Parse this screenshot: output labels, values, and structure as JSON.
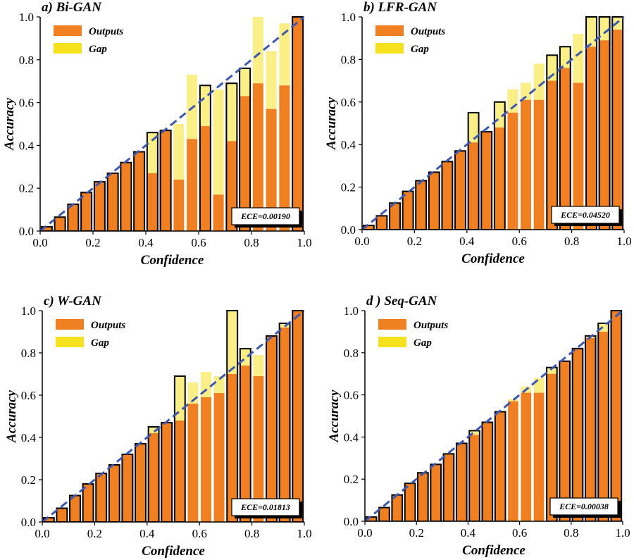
{
  "colors": {
    "outputs": "#f07f22",
    "gap_fill": "#faee86",
    "gap_legend": "#f5e21c",
    "diagonal": "#3e58b0",
    "bar_edge": "#000000"
  },
  "chart_data": [
    {
      "type": "bar",
      "title": "a) Bi-GAN",
      "xlabel": "Confidence",
      "ylabel": "Accuracy",
      "xlim": [
        0.0,
        1.0
      ],
      "ylim": [
        0.0,
        1.0
      ],
      "xticks": [
        "0.0",
        "0.2",
        "0.4",
        "0.6",
        "0.8",
        "1.0"
      ],
      "yticks": [
        "0.0",
        "0.2",
        "0.4",
        "0.6",
        "0.8",
        "1.0"
      ],
      "legend": [
        "Outputs",
        "Gap"
      ],
      "ece_label": "ECE=0.00190",
      "bin_centers": [
        0.025,
        0.075,
        0.125,
        0.175,
        0.225,
        0.275,
        0.325,
        0.375,
        0.425,
        0.475,
        0.525,
        0.575,
        0.625,
        0.675,
        0.725,
        0.775,
        0.825,
        0.875,
        0.925,
        0.975
      ],
      "outputs": [
        0.02,
        0.065,
        0.125,
        0.18,
        0.23,
        0.27,
        0.32,
        0.37,
        0.27,
        0.47,
        0.24,
        0.43,
        0.49,
        0.17,
        0.42,
        0.63,
        0.69,
        0.57,
        0.68,
        1.0
      ],
      "gap_top": [
        0.02,
        0.065,
        0.125,
        0.18,
        0.23,
        0.27,
        0.32,
        0.37,
        0.46,
        0.47,
        0.5,
        0.73,
        0.68,
        0.66,
        0.69,
        0.76,
        1.0,
        0.84,
        0.97,
        1.0
      ],
      "outlined": [
        true,
        true,
        true,
        true,
        true,
        true,
        true,
        true,
        true,
        true,
        false,
        false,
        true,
        false,
        true,
        true,
        false,
        false,
        false,
        true
      ]
    },
    {
      "type": "bar",
      "title": "b) LFR-GAN",
      "xlabel": "Confidence",
      "ylabel": "Accuracy",
      "xlim": [
        0.0,
        1.0
      ],
      "ylim": [
        0.0,
        1.0
      ],
      "xticks": [
        "0.0",
        "0.2",
        "0.4",
        "0.6",
        "0.8",
        "1.0"
      ],
      "yticks": [
        "0.0",
        "0.2",
        "0.4",
        "0.6",
        "0.8",
        "1.0"
      ],
      "legend": [
        "Outputs",
        "Gap"
      ],
      "ece_label": "ECE=0.04520",
      "bin_centers": [
        0.025,
        0.075,
        0.125,
        0.175,
        0.225,
        0.275,
        0.325,
        0.375,
        0.425,
        0.475,
        0.525,
        0.575,
        0.625,
        0.675,
        0.725,
        0.775,
        0.825,
        0.875,
        0.925,
        0.975
      ],
      "outputs": [
        0.02,
        0.065,
        0.125,
        0.18,
        0.23,
        0.27,
        0.32,
        0.37,
        0.41,
        0.46,
        0.48,
        0.55,
        0.61,
        0.61,
        0.7,
        0.76,
        0.69,
        0.86,
        0.89,
        0.94
      ],
      "gap_top": [
        0.02,
        0.065,
        0.125,
        0.18,
        0.23,
        0.27,
        0.32,
        0.37,
        0.55,
        0.46,
        0.6,
        0.66,
        0.69,
        0.78,
        0.82,
        0.86,
        0.92,
        1.0,
        1.0,
        1.0
      ],
      "outlined": [
        true,
        true,
        true,
        true,
        true,
        true,
        true,
        true,
        true,
        true,
        true,
        false,
        false,
        false,
        true,
        true,
        false,
        true,
        true,
        true
      ]
    },
    {
      "type": "bar",
      "title": "c) W-GAN",
      "xlabel": "Confidence",
      "ylabel": "Accuracy",
      "xlim": [
        0.0,
        1.0
      ],
      "ylim": [
        0.0,
        1.0
      ],
      "xticks": [
        "0.0",
        "0.2",
        "0.4",
        "0.6",
        "0.8",
        "1.0"
      ],
      "yticks": [
        "0.0",
        "0.2",
        "0.4",
        "0.6",
        "0.8",
        "1.0"
      ],
      "legend": [
        "Outputs",
        "Gap"
      ],
      "ece_label": "ECE=0.01813",
      "bin_centers": [
        0.025,
        0.075,
        0.125,
        0.175,
        0.225,
        0.275,
        0.325,
        0.375,
        0.425,
        0.475,
        0.525,
        0.575,
        0.625,
        0.675,
        0.725,
        0.775,
        0.825,
        0.875,
        0.925,
        0.975
      ],
      "outputs": [
        0.02,
        0.065,
        0.125,
        0.18,
        0.23,
        0.27,
        0.32,
        0.37,
        0.42,
        0.47,
        0.48,
        0.56,
        0.59,
        0.61,
        0.7,
        0.74,
        0.69,
        0.88,
        0.92,
        1.0
      ],
      "gap_top": [
        0.02,
        0.065,
        0.125,
        0.18,
        0.23,
        0.27,
        0.32,
        0.37,
        0.45,
        0.47,
        0.69,
        0.66,
        0.71,
        0.69,
        1.0,
        0.82,
        0.79,
        0.88,
        0.94,
        1.0
      ],
      "outlined": [
        true,
        true,
        true,
        true,
        true,
        true,
        true,
        true,
        true,
        true,
        true,
        false,
        false,
        false,
        true,
        true,
        false,
        true,
        true,
        true
      ]
    },
    {
      "type": "bar",
      "title": "d ) Seq-GAN",
      "xlabel": "Confidence",
      "ylabel": "Accuracy",
      "xlim": [
        0.0,
        1.0
      ],
      "ylim": [
        0.0,
        1.0
      ],
      "xticks": [
        "0.0",
        "0.2",
        "0.4",
        "0.6",
        "0.8",
        "1.0"
      ],
      "yticks": [
        "0.0",
        "0.2",
        "0.4",
        "0.6",
        "0.8",
        "1.0"
      ],
      "legend": [
        "Outputs",
        "Gap"
      ],
      "ece_label": "ECE=0.00038",
      "bin_centers": [
        0.025,
        0.075,
        0.125,
        0.175,
        0.225,
        0.275,
        0.325,
        0.375,
        0.425,
        0.475,
        0.525,
        0.575,
        0.625,
        0.675,
        0.725,
        0.775,
        0.825,
        0.875,
        0.925,
        0.975
      ],
      "outputs": [
        0.02,
        0.065,
        0.125,
        0.18,
        0.23,
        0.27,
        0.32,
        0.37,
        0.41,
        0.47,
        0.52,
        0.57,
        0.61,
        0.61,
        0.7,
        0.76,
        0.82,
        0.87,
        0.9,
        1.0
      ],
      "gap_top": [
        0.02,
        0.065,
        0.125,
        0.18,
        0.23,
        0.27,
        0.32,
        0.37,
        0.43,
        0.47,
        0.52,
        0.58,
        0.64,
        0.68,
        0.73,
        0.76,
        0.82,
        0.88,
        0.94,
        1.0
      ],
      "outlined": [
        true,
        true,
        true,
        true,
        true,
        true,
        true,
        true,
        true,
        true,
        true,
        false,
        false,
        false,
        true,
        true,
        true,
        true,
        true,
        true
      ]
    }
  ]
}
